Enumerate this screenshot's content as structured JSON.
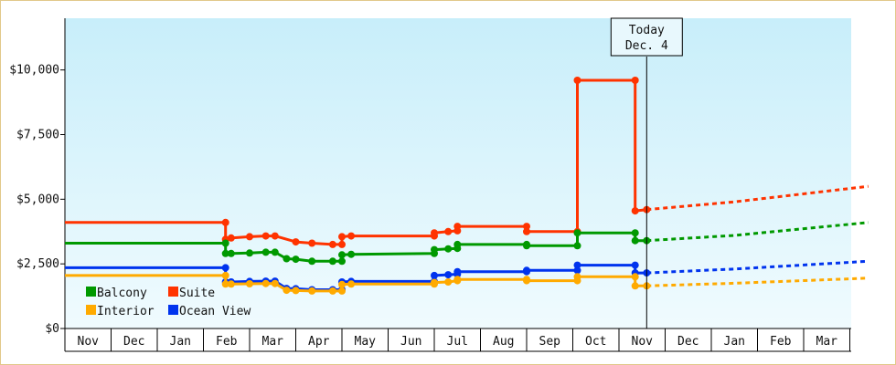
{
  "chart_data": {
    "type": "line",
    "title": "",
    "xlabel": "",
    "ylabel": "",
    "ylim": [
      0,
      12000
    ],
    "y_ticks": [
      {
        "value": 0,
        "label": "$0"
      },
      {
        "value": 2500,
        "label": "$2,500"
      },
      {
        "value": 5000,
        "label": "$5,000"
      },
      {
        "value": 7500,
        "label": "$7,500"
      },
      {
        "value": 10000,
        "label": "$10,000"
      }
    ],
    "x_months": [
      "Nov",
      "Dec",
      "Jan",
      "Feb",
      "Mar",
      "Apr",
      "May",
      "Jun",
      "Jul",
      "Aug",
      "Sep",
      "Oct",
      "Nov",
      "Dec",
      "Jan",
      "Feb",
      "Mar"
    ],
    "annotation": {
      "line1": "Today",
      "line2": "Dec. 4",
      "x": 12.6
    },
    "legend_placement": "bottom-left",
    "series": [
      {
        "name": "Suite",
        "color": "#ff3300",
        "points": [
          [
            0,
            4100
          ],
          [
            3.48,
            4100
          ],
          [
            3.48,
            3450
          ],
          [
            3.6,
            3500
          ],
          [
            4.0,
            3550
          ],
          [
            4.35,
            3580
          ],
          [
            4.55,
            3580
          ],
          [
            5.0,
            3350
          ],
          [
            5.35,
            3300
          ],
          [
            5.8,
            3250
          ],
          [
            6.0,
            3250
          ],
          [
            6.0,
            3550
          ],
          [
            6.2,
            3580
          ],
          [
            8.0,
            3580
          ],
          [
            8.0,
            3700
          ],
          [
            8.3,
            3750
          ],
          [
            8.5,
            3780
          ],
          [
            8.5,
            3950
          ],
          [
            10.0,
            3950
          ],
          [
            10.0,
            3750
          ],
          [
            11.1,
            3750
          ],
          [
            11.1,
            9600
          ],
          [
            12.35,
            9600
          ],
          [
            12.35,
            4550
          ],
          [
            12.6,
            4600
          ]
        ],
        "forecast": [
          [
            12.6,
            4600
          ],
          [
            14.5,
            4900
          ],
          [
            17.4,
            5500
          ]
        ]
      },
      {
        "name": "Balcony",
        "color": "#009900",
        "points": [
          [
            0,
            3300
          ],
          [
            3.48,
            3300
          ],
          [
            3.48,
            2900
          ],
          [
            3.6,
            2900
          ],
          [
            4.0,
            2920
          ],
          [
            4.35,
            2950
          ],
          [
            4.55,
            2950
          ],
          [
            4.8,
            2700
          ],
          [
            5.0,
            2680
          ],
          [
            5.35,
            2600
          ],
          [
            5.8,
            2600
          ],
          [
            6.0,
            2600
          ],
          [
            6.0,
            2850
          ],
          [
            6.2,
            2870
          ],
          [
            8.0,
            2900
          ],
          [
            8.0,
            3050
          ],
          [
            8.3,
            3080
          ],
          [
            8.5,
            3100
          ],
          [
            8.5,
            3250
          ],
          [
            10.0,
            3250
          ],
          [
            10.0,
            3200
          ],
          [
            11.1,
            3200
          ],
          [
            11.1,
            3700
          ],
          [
            12.35,
            3700
          ],
          [
            12.35,
            3400
          ],
          [
            12.6,
            3400
          ]
        ],
        "forecast": [
          [
            12.6,
            3400
          ],
          [
            14.5,
            3600
          ],
          [
            17.4,
            4100
          ]
        ]
      },
      {
        "name": "Ocean View",
        "color": "#0033ee",
        "points": [
          [
            0,
            2350
          ],
          [
            3.48,
            2350
          ],
          [
            3.48,
            1800
          ],
          [
            3.6,
            1800
          ],
          [
            4.0,
            1820
          ],
          [
            4.35,
            1830
          ],
          [
            4.55,
            1830
          ],
          [
            4.8,
            1550
          ],
          [
            5.0,
            1540
          ],
          [
            5.35,
            1500
          ],
          [
            5.8,
            1500
          ],
          [
            6.0,
            1500
          ],
          [
            6.0,
            1800
          ],
          [
            6.2,
            1820
          ],
          [
            8.0,
            1820
          ],
          [
            8.0,
            2050
          ],
          [
            8.3,
            2080
          ],
          [
            8.5,
            2100
          ],
          [
            8.5,
            2200
          ],
          [
            10.0,
            2200
          ],
          [
            10.0,
            2250
          ],
          [
            11.1,
            2250
          ],
          [
            11.1,
            2450
          ],
          [
            12.35,
            2450
          ],
          [
            12.35,
            2150
          ],
          [
            12.6,
            2150
          ]
        ],
        "forecast": [
          [
            12.6,
            2150
          ],
          [
            14.5,
            2300
          ],
          [
            17.4,
            2600
          ]
        ]
      },
      {
        "name": "Interior",
        "color": "#ffaa00",
        "points": [
          [
            0,
            2050
          ],
          [
            3.48,
            2050
          ],
          [
            3.48,
            1720
          ],
          [
            3.6,
            1720
          ],
          [
            4.0,
            1730
          ],
          [
            4.35,
            1740
          ],
          [
            4.55,
            1740
          ],
          [
            4.8,
            1480
          ],
          [
            5.0,
            1470
          ],
          [
            5.35,
            1450
          ],
          [
            5.8,
            1450
          ],
          [
            6.0,
            1450
          ],
          [
            6.0,
            1700
          ],
          [
            6.2,
            1720
          ],
          [
            8.0,
            1720
          ],
          [
            8.0,
            1780
          ],
          [
            8.3,
            1800
          ],
          [
            8.5,
            1850
          ],
          [
            8.5,
            1900
          ],
          [
            10.0,
            1900
          ],
          [
            10.0,
            1850
          ],
          [
            11.1,
            1850
          ],
          [
            11.1,
            2000
          ],
          [
            12.35,
            2000
          ],
          [
            12.35,
            1650
          ],
          [
            12.6,
            1650
          ]
        ],
        "forecast": [
          [
            12.6,
            1650
          ],
          [
            14.5,
            1750
          ],
          [
            17.4,
            1950
          ]
        ]
      }
    ],
    "legend": [
      {
        "name": "Balcony",
        "color": "#009900"
      },
      {
        "name": "Suite",
        "color": "#ff3300"
      },
      {
        "name": "Interior",
        "color": "#ffaa00"
      },
      {
        "name": "Ocean View",
        "color": "#0033ee"
      }
    ]
  }
}
